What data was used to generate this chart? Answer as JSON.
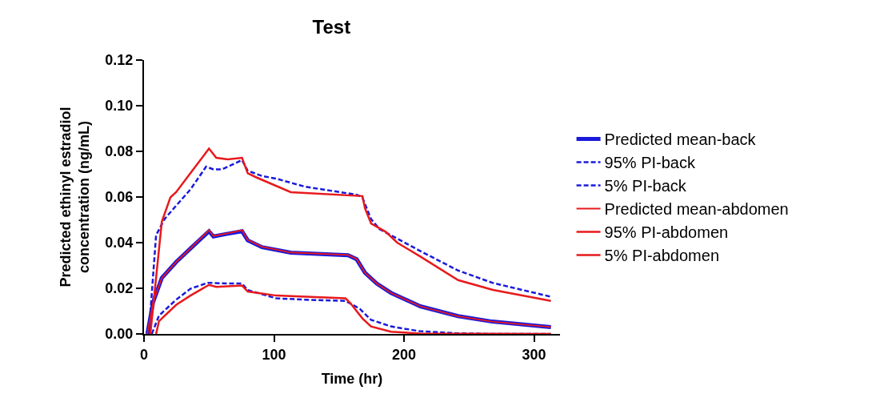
{
  "chart_data": {
    "type": "line",
    "title": "Test",
    "xlabel": "Time (hr)",
    "ylabel": "Predicted ethinyl estradiol\nconcentration (ng/mL)",
    "xlim": [
      0,
      320
    ],
    "xticks": [
      0,
      100,
      200,
      300
    ],
    "ylim": [
      0,
      0.12
    ],
    "yticks": [
      {
        "value": 0,
        "label": "0.00"
      },
      {
        "value": 0.02,
        "label": "0.02"
      },
      {
        "value": 0.04,
        "label": "0.04"
      },
      {
        "value": 0.06,
        "label": "0.06"
      },
      {
        "value": 0.08,
        "label": "0.08"
      },
      {
        "value": 0.1,
        "label": "0.10"
      },
      {
        "value": 0.12,
        "label": "0.12"
      }
    ],
    "legend": "right",
    "marker": "none",
    "series": [
      {
        "name": "Predicted mean-back",
        "color": "#1a1adb",
        "line_style": "solid",
        "x": [
          2.6,
          7,
          13.7,
          24.7,
          35.7,
          50,
          53.4,
          64.4,
          75.4,
          79.8,
          90.8,
          112.9,
          157,
          163.6,
          170,
          179,
          190,
          212.6,
          241.6,
          268,
          313
        ],
        "values": [
          0,
          0.0139,
          0.0245,
          0.0315,
          0.0374,
          0.045,
          0.0427,
          0.0439,
          0.045,
          0.041,
          0.038,
          0.0356,
          0.0345,
          0.0327,
          0.0268,
          0.0221,
          0.018,
          0.0121,
          0.0078,
          0.0054,
          0.003
        ]
      },
      {
        "name": "95% PI-back",
        "color": "#1a1adb",
        "line_style": "dashed",
        "x": [
          3.7,
          9.3,
          15.9,
          24.7,
          35.7,
          47.8,
          53.4,
          60,
          75.4,
          79.8,
          90.8,
          101.9,
          124,
          163.6,
          168,
          174.6,
          181,
          212.6,
          241.6,
          268,
          313
        ],
        "values": [
          0,
          0.0433,
          0.0504,
          0.0562,
          0.0633,
          0.0733,
          0.0721,
          0.0721,
          0.0762,
          0.0715,
          0.0692,
          0.068,
          0.0645,
          0.061,
          0.0598,
          0.0504,
          0.046,
          0.0363,
          0.0278,
          0.0224,
          0.0163
        ]
      },
      {
        "name": "5% PI-back",
        "color": "#1a1adb",
        "line_style": "dashed",
        "x": [
          6,
          11.5,
          24.7,
          35.7,
          49,
          64.4,
          75.4,
          79.8,
          101.9,
          124,
          155,
          166,
          174.6,
          190,
          212,
          241,
          268,
          313
        ],
        "values": [
          0,
          0.008,
          0.015,
          0.0198,
          0.0224,
          0.0221,
          0.0221,
          0.0192,
          0.0156,
          0.015,
          0.0145,
          0.011,
          0.0062,
          0.0033,
          0.0012,
          0.0003,
          0,
          0
        ]
      },
      {
        "name": "Predicted mean-abdomen",
        "color": "#e8191b",
        "line_style": "solid",
        "x": [
          2.6,
          7,
          13.7,
          24.7,
          35.7,
          50,
          53.4,
          64.4,
          75.4,
          79.8,
          90.8,
          112.9,
          157,
          163.6,
          170,
          179,
          190,
          212.6,
          241.6,
          268,
          313
        ],
        "values": [
          0,
          0.0139,
          0.0245,
          0.0315,
          0.0374,
          0.0455,
          0.0429,
          0.0441,
          0.0455,
          0.0412,
          0.0382,
          0.0357,
          0.0346,
          0.0328,
          0.0268,
          0.0221,
          0.018,
          0.0121,
          0.0078,
          0.0054,
          0.003
        ]
      },
      {
        "name": "95% PI-abdomen",
        "color": "#e8191b",
        "line_style": "solid",
        "x": [
          4.9,
          13.7,
          20.3,
          24.7,
          35.7,
          50,
          55.6,
          64.4,
          75.4,
          79.8,
          86.4,
          112.9,
          168,
          170,
          174.7,
          185.8,
          194.8,
          212.6,
          241.6,
          268.4,
          313
        ],
        "values": [
          0,
          0.0492,
          0.0598,
          0.0621,
          0.0704,
          0.0812,
          0.0772,
          0.0765,
          0.0772,
          0.0704,
          0.0686,
          0.0621,
          0.0604,
          0.055,
          0.0484,
          0.0448,
          0.04,
          0.0339,
          0.0236,
          0.0193,
          0.0145
        ]
      },
      {
        "name": "5% PI-abdomen",
        "color": "#e8191b",
        "line_style": "solid",
        "x": [
          9.3,
          11.5,
          24.7,
          35.7,
          50,
          55.6,
          75.4,
          79.8,
          101.9,
          155,
          159,
          168,
          174.6,
          190,
          212,
          313
        ],
        "values": [
          0,
          0.0056,
          0.0127,
          0.0168,
          0.0215,
          0.0206,
          0.0212,
          0.0186,
          0.0168,
          0.0156,
          0.0133,
          0.0068,
          0.0033,
          0.001,
          0.0002,
          0
        ]
      }
    ]
  }
}
